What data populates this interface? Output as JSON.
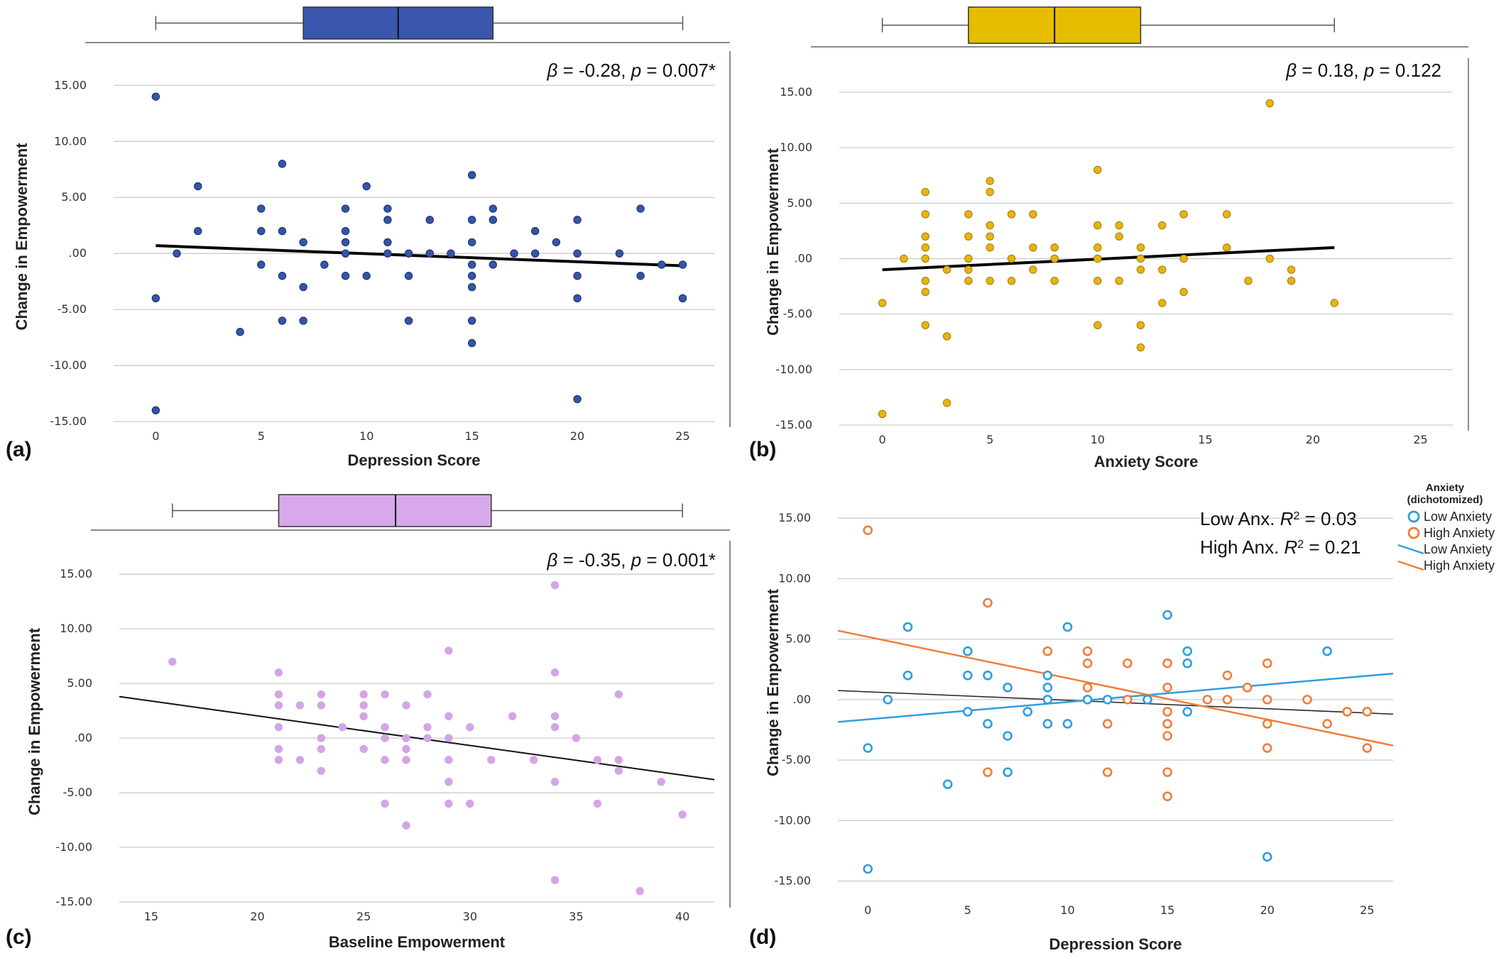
{
  "chart_data": [
    {
      "id": "a",
      "type": "scatter",
      "panel_label": "(a)",
      "xlabel": "Depression Score",
      "ylabel": "Change in Empowerment",
      "xlim": [
        -2,
        26.5
      ],
      "ylim": [
        -15,
        18
      ],
      "x_ticks": [
        0,
        5,
        10,
        15,
        20,
        25
      ],
      "y_ticks": [
        15,
        10,
        5,
        0,
        -5,
        -10,
        -15
      ],
      "y_tick_labels": [
        "15.00",
        "10.00",
        "5.00",
        ".00",
        "-5.00",
        "-10.00",
        "-15.00"
      ],
      "point_color": "#3355aa",
      "point_edge": "#1a2d66",
      "stat_text": [
        "β",
        " = -0.28, ",
        "p",
        " = 0.007*"
      ],
      "boxplot": {
        "min": 0,
        "q1": 7,
        "median": 11.5,
        "q3": 16,
        "max": 25,
        "fill": "#3a56ad"
      },
      "fit_line": {
        "x1": 0,
        "y1": 0.7,
        "x2": 25,
        "y2": -1.1,
        "color": "#000000",
        "width": 4
      },
      "points": [
        [
          0,
          14
        ],
        [
          0,
          -4
        ],
        [
          0,
          -14
        ],
        [
          1,
          0
        ],
        [
          2,
          6
        ],
        [
          2,
          2
        ],
        [
          4,
          -7
        ],
        [
          5,
          4
        ],
        [
          5,
          2
        ],
        [
          5,
          -1
        ],
        [
          6,
          8
        ],
        [
          6,
          2
        ],
        [
          6,
          -2
        ],
        [
          6,
          -6
        ],
        [
          7,
          1
        ],
        [
          7,
          -3
        ],
        [
          7,
          -6
        ],
        [
          8,
          -1
        ],
        [
          9,
          4
        ],
        [
          9,
          2
        ],
        [
          9,
          1
        ],
        [
          9,
          0
        ],
        [
          9,
          -2
        ],
        [
          10,
          6
        ],
        [
          10,
          -2
        ],
        [
          11,
          4
        ],
        [
          11,
          3
        ],
        [
          11,
          1
        ],
        [
          11,
          0
        ],
        [
          12,
          0
        ],
        [
          12,
          -2
        ],
        [
          12,
          -6
        ],
        [
          13,
          3
        ],
        [
          13,
          0
        ],
        [
          14,
          0
        ],
        [
          15,
          7
        ],
        [
          15,
          3
        ],
        [
          15,
          1
        ],
        [
          15,
          -1
        ],
        [
          15,
          -2
        ],
        [
          15,
          -3
        ],
        [
          15,
          -6
        ],
        [
          15,
          -8
        ],
        [
          16,
          4
        ],
        [
          16,
          3
        ],
        [
          16,
          -1
        ],
        [
          17,
          0
        ],
        [
          18,
          2
        ],
        [
          18,
          0
        ],
        [
          19,
          1
        ],
        [
          20,
          3
        ],
        [
          20,
          0
        ],
        [
          20,
          -2
        ],
        [
          20,
          -4
        ],
        [
          20,
          -13
        ],
        [
          22,
          0
        ],
        [
          23,
          4
        ],
        [
          23,
          -2
        ],
        [
          24,
          -1
        ],
        [
          25,
          -1
        ],
        [
          25,
          -4
        ]
      ]
    },
    {
      "id": "b",
      "type": "scatter",
      "panel_label": "(b)",
      "xlabel": "Anxiety Score",
      "ylabel": "Change in Empowerment",
      "xlim": [
        -2,
        26.5
      ],
      "ylim": [
        -15,
        18
      ],
      "x_ticks": [
        0,
        5,
        10,
        15,
        20,
        25
      ],
      "y_ticks": [
        15,
        10,
        5,
        0,
        -5,
        -10,
        -15
      ],
      "y_tick_labels": [
        "15.00",
        "10.00",
        "5.00",
        ".00",
        "-5.00",
        "-10.00",
        "-15.00"
      ],
      "point_color": "#e8b312",
      "point_edge": "#a37a00",
      "stat_text": [
        "β",
        " = 0.18, ",
        "p",
        " = 0.122"
      ],
      "boxplot": {
        "min": 0,
        "q1": 4,
        "median": 8,
        "q3": 12,
        "max": 21,
        "fill": "#e6bd00"
      },
      "fit_line": {
        "x1": 0,
        "y1": -1,
        "x2": 21,
        "y2": 1,
        "color": "#000000",
        "width": 4
      },
      "points": [
        [
          0,
          -4
        ],
        [
          0,
          -14
        ],
        [
          1,
          0
        ],
        [
          2,
          6
        ],
        [
          2,
          4
        ],
        [
          2,
          2
        ],
        [
          2,
          1
        ],
        [
          2,
          0
        ],
        [
          2,
          -2
        ],
        [
          2,
          -3
        ],
        [
          2,
          -6
        ],
        [
          3,
          -1
        ],
        [
          3,
          -7
        ],
        [
          3,
          -13
        ],
        [
          4,
          4
        ],
        [
          4,
          2
        ],
        [
          4,
          0
        ],
        [
          4,
          -1
        ],
        [
          4,
          -2
        ],
        [
          5,
          7
        ],
        [
          5,
          6
        ],
        [
          5,
          3
        ],
        [
          5,
          2
        ],
        [
          5,
          1
        ],
        [
          5,
          -2
        ],
        [
          6,
          4
        ],
        [
          6,
          0
        ],
        [
          6,
          -2
        ],
        [
          7,
          4
        ],
        [
          7,
          1
        ],
        [
          7,
          -1
        ],
        [
          8,
          1
        ],
        [
          8,
          0
        ],
        [
          8,
          -2
        ],
        [
          10,
          8
        ],
        [
          10,
          3
        ],
        [
          10,
          1
        ],
        [
          10,
          0
        ],
        [
          10,
          -2
        ],
        [
          10,
          -6
        ],
        [
          11,
          3
        ],
        [
          11,
          2
        ],
        [
          11,
          -2
        ],
        [
          12,
          1
        ],
        [
          12,
          0
        ],
        [
          12,
          -1
        ],
        [
          12,
          -6
        ],
        [
          12,
          -8
        ],
        [
          13,
          3
        ],
        [
          13,
          -1
        ],
        [
          13,
          -4
        ],
        [
          14,
          4
        ],
        [
          14,
          0
        ],
        [
          14,
          -3
        ],
        [
          16,
          4
        ],
        [
          16,
          1
        ],
        [
          17,
          -2
        ],
        [
          18,
          14
        ],
        [
          18,
          0
        ],
        [
          19,
          -1
        ],
        [
          19,
          -2
        ],
        [
          21,
          -4
        ]
      ]
    },
    {
      "id": "c",
      "type": "scatter",
      "panel_label": "(c)",
      "xlabel": "Baseline Empowerment",
      "ylabel": "Change in Empowerment",
      "xlim": [
        13.5,
        41.5
      ],
      "ylim": [
        -15,
        18
      ],
      "x_ticks": [
        15,
        20,
        25,
        30,
        35,
        40
      ],
      "y_ticks": [
        15,
        10,
        5,
        0,
        -5,
        -10,
        -15
      ],
      "y_tick_labels": [
        "15.00",
        "10.00",
        "5.00",
        ".00",
        "-5.00",
        "-10.00",
        "-15.00"
      ],
      "point_color": "#d4a5e6",
      "point_edge": "#d4a5e6",
      "stat_text": [
        "β",
        " = -0.35, ",
        "p",
        " = 0.001*"
      ],
      "boxplot": {
        "min": 16,
        "q1": 21,
        "median": 26.5,
        "q3": 31,
        "max": 40,
        "fill": "#d7a9ea"
      },
      "fit_line": {
        "x1": 13.5,
        "y1": 3.8,
        "x2": 41.5,
        "y2": -3.8,
        "color": "#111111",
        "width": 2
      },
      "points": [
        [
          16,
          7
        ],
        [
          21,
          6
        ],
        [
          21,
          4
        ],
        [
          21,
          3
        ],
        [
          21,
          1
        ],
        [
          21,
          -1
        ],
        [
          21,
          -2
        ],
        [
          22,
          3
        ],
        [
          22,
          -2
        ],
        [
          23,
          4
        ],
        [
          23,
          3
        ],
        [
          23,
          0
        ],
        [
          23,
          -1
        ],
        [
          23,
          -3
        ],
        [
          24,
          1
        ],
        [
          25,
          4
        ],
        [
          25,
          3
        ],
        [
          25,
          2
        ],
        [
          25,
          -1
        ],
        [
          26,
          4
        ],
        [
          26,
          1
        ],
        [
          26,
          0
        ],
        [
          26,
          -2
        ],
        [
          26,
          -6
        ],
        [
          27,
          3
        ],
        [
          27,
          0
        ],
        [
          27,
          -1
        ],
        [
          27,
          -2
        ],
        [
          27,
          -8
        ],
        [
          28,
          4
        ],
        [
          28,
          1
        ],
        [
          28,
          0
        ],
        [
          29,
          8
        ],
        [
          29,
          2
        ],
        [
          29,
          0
        ],
        [
          29,
          -2
        ],
        [
          29,
          -4
        ],
        [
          29,
          -6
        ],
        [
          30,
          1
        ],
        [
          30,
          -6
        ],
        [
          31,
          -2
        ],
        [
          32,
          2
        ],
        [
          33,
          -2
        ],
        [
          34,
          14
        ],
        [
          34,
          6
        ],
        [
          34,
          2
        ],
        [
          34,
          1
        ],
        [
          34,
          -4
        ],
        [
          34,
          -13
        ],
        [
          35,
          0
        ],
        [
          36,
          -2
        ],
        [
          36,
          -6
        ],
        [
          37,
          4
        ],
        [
          37,
          -2
        ],
        [
          37,
          -3
        ],
        [
          38,
          -14
        ],
        [
          39,
          -4
        ],
        [
          40,
          -7
        ]
      ]
    },
    {
      "id": "d",
      "type": "scatter",
      "panel_label": "(d)",
      "xlabel": "Depression Score",
      "ylabel": "Change in Empowerment",
      "xlim": [
        -1.5,
        26.3
      ],
      "ylim": [
        -16.2,
        19
      ],
      "x_ticks": [
        0,
        5,
        10,
        15,
        20,
        25
      ],
      "y_ticks": [
        15,
        10,
        5,
        0,
        -5,
        -10,
        -15
      ],
      "y_tick_labels": [
        "15.00",
        "10.00",
        "5.00",
        ".00",
        "-5.00",
        "-10.00",
        "-15.00"
      ],
      "stat_lines": [
        [
          "Low Anx. ",
          "R",
          "2",
          " = 0.03"
        ],
        [
          "High Anx. ",
          "R",
          "2",
          " = 0.21"
        ]
      ],
      "legend": {
        "title": [
          "Anxiety",
          "(dichotomized)"
        ],
        "items": [
          {
            "label": "Low Anxiety",
            "kind": "circle",
            "color": "#2d9ee0"
          },
          {
            "label": "High Anxiety",
            "kind": "circle",
            "color": "#f07d3a"
          },
          {
            "label": "Low Anxiety",
            "kind": "line",
            "color": "#2d9ee0"
          },
          {
            "label": "High Anxiety",
            "kind": "line",
            "color": "#f07d3a"
          }
        ]
      },
      "fit_lines": [
        {
          "x1": -1.5,
          "y1": 0.75,
          "x2": 26.3,
          "y2": -1.2,
          "color": "#222222",
          "width": 1.5
        },
        {
          "x1": -1.5,
          "y1": -1.85,
          "x2": 26.3,
          "y2": 2.15,
          "color": "#2d9ee0",
          "width": 2.5
        },
        {
          "x1": -1.5,
          "y1": 5.7,
          "x2": 26.3,
          "y2": -3.8,
          "color": "#f07d3a",
          "width": 2.5
        }
      ],
      "series": [
        {
          "name": "Low Anxiety",
          "color": "#2d9ee0",
          "points": [
            [
              0,
              -4
            ],
            [
              0,
              -14
            ],
            [
              1,
              0
            ],
            [
              2,
              6
            ],
            [
              2,
              2
            ],
            [
              4,
              -7
            ],
            [
              5,
              4
            ],
            [
              5,
              2
            ],
            [
              5,
              -1
            ],
            [
              6,
              2
            ],
            [
              6,
              -2
            ],
            [
              7,
              1
            ],
            [
              7,
              -3
            ],
            [
              7,
              -6
            ],
            [
              8,
              -1
            ],
            [
              9,
              2
            ],
            [
              9,
              1
            ],
            [
              9,
              0
            ],
            [
              9,
              -2
            ],
            [
              10,
              6
            ],
            [
              10,
              -2
            ],
            [
              11,
              0
            ],
            [
              12,
              0
            ],
            [
              14,
              0
            ],
            [
              15,
              7
            ],
            [
              16,
              4
            ],
            [
              16,
              3
            ],
            [
              16,
              -1
            ],
            [
              20,
              -13
            ],
            [
              23,
              4
            ]
          ]
        },
        {
          "name": "High Anxiety",
          "color": "#f07d3a",
          "points": [
            [
              0,
              14
            ],
            [
              6,
              8
            ],
            [
              6,
              -6
            ],
            [
              9,
              4
            ],
            [
              11,
              4
            ],
            [
              11,
              3
            ],
            [
              11,
              1
            ],
            [
              12,
              -2
            ],
            [
              12,
              -6
            ],
            [
              13,
              3
            ],
            [
              13,
              0
            ],
            [
              15,
              3
            ],
            [
              15,
              1
            ],
            [
              15,
              -1
            ],
            [
              15,
              -2
            ],
            [
              15,
              -3
            ],
            [
              15,
              -6
            ],
            [
              15,
              -8
            ],
            [
              17,
              0
            ],
            [
              18,
              2
            ],
            [
              18,
              0
            ],
            [
              19,
              1
            ],
            [
              20,
              3
            ],
            [
              20,
              0
            ],
            [
              20,
              -2
            ],
            [
              20,
              -4
            ],
            [
              22,
              0
            ],
            [
              23,
              -2
            ],
            [
              24,
              -1
            ],
            [
              25,
              -1
            ],
            [
              25,
              -4
            ]
          ]
        }
      ]
    }
  ]
}
